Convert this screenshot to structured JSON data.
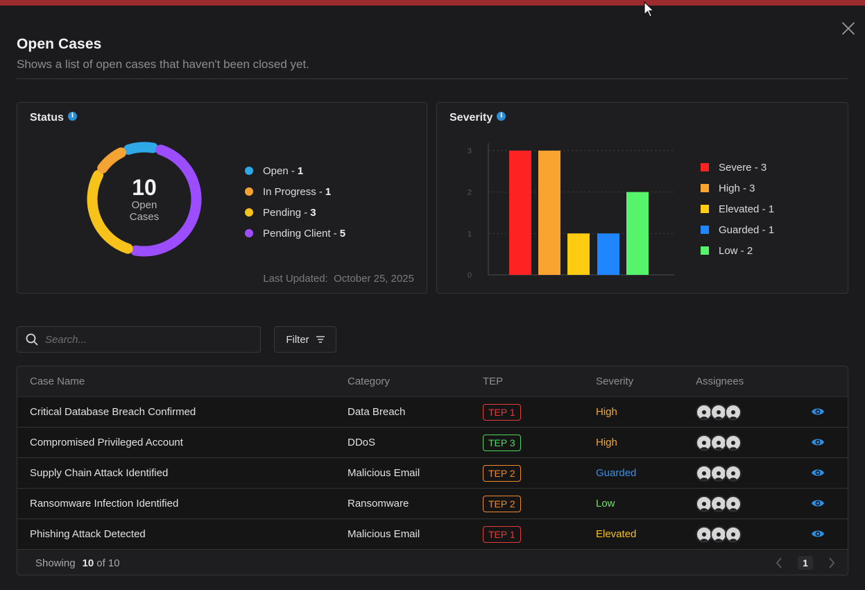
{
  "modal": {
    "title": "Open Cases",
    "subtitle": "Shows a list of open cases that haven't been closed yet."
  },
  "status_card": {
    "title": "Status",
    "total": "10",
    "center_label": "Open Cases",
    "items": [
      {
        "label": "Open - ",
        "count": "1",
        "color": "#2ea8e6"
      },
      {
        "label": "In Progress - ",
        "count": "1",
        "color": "#f5a434"
      },
      {
        "label": "Pending - ",
        "count": "3",
        "color": "#f7c31a"
      },
      {
        "label": "Pending Client - ",
        "count": "5",
        "color": "#9b4dff"
      }
    ],
    "last_updated_label": "Last Updated:",
    "last_updated_value": "October 25, 2025"
  },
  "severity_card": {
    "title": "Severity",
    "legend": [
      {
        "label": "Severe - 3",
        "color": "#ff2222"
      },
      {
        "label": "High - 3",
        "color": "#f9a431"
      },
      {
        "label": "Elevated - 1",
        "color": "#ffcc11"
      },
      {
        "label": "Guarded - 1",
        "color": "#1f86ff"
      },
      {
        "label": "Low - 2",
        "color": "#55f46b"
      }
    ]
  },
  "chart_data": {
    "type": "bar",
    "categories": [
      "Severe",
      "High",
      "Elevated",
      "Guarded",
      "Low"
    ],
    "values": [
      3,
      3,
      1,
      1,
      2
    ],
    "colors": [
      "#ff2222",
      "#f9a431",
      "#ffcc11",
      "#1f86ff",
      "#55f46b"
    ],
    "yticks": [
      "0",
      "1",
      "2",
      "3"
    ],
    "ylim": [
      0,
      3
    ],
    "grid": true
  },
  "toolbar": {
    "search_placeholder": "Search...",
    "filter_label": "Filter"
  },
  "table": {
    "headers": [
      "Case Name",
      "Category",
      "TEP",
      "Severity",
      "Assignees"
    ],
    "rows": [
      {
        "name": "Critical Database Breach Confirmed",
        "category": "Data Breach",
        "tep": "TEP 1",
        "tep_color": "#e53a3a",
        "severity": "High",
        "severity_color": "#f5a434"
      },
      {
        "name": "Compromised Privileged Account",
        "category": "DDoS",
        "tep": "TEP 3",
        "tep_color": "#4fd65d",
        "severity": "High",
        "severity_color": "#f5a434"
      },
      {
        "name": "Supply Chain Attack Identified",
        "category": "Malicious Email",
        "tep": "TEP 2",
        "tep_color": "#f08a2a",
        "severity": "Guarded",
        "severity_color": "#3b8fe8"
      },
      {
        "name": "Ransomware Infection Identified",
        "category": "Ransomware",
        "tep": "TEP 2",
        "tep_color": "#f08a2a",
        "severity": "Low",
        "severity_color": "#6fe06a"
      },
      {
        "name": "Phishing Attack Detected",
        "category": "Malicious Email",
        "tep": "TEP 1",
        "tep_color": "#e53a3a",
        "severity": "Elevated",
        "severity_color": "#f7c31a"
      }
    ],
    "footer": {
      "showing_label": "Showing",
      "showing_count": "10",
      "showing_total": "of 10",
      "page": "1"
    }
  },
  "icons": {
    "close": "close-icon",
    "info": "info-icon",
    "search": "search-icon",
    "filter": "filter-icon",
    "view": "eye-icon",
    "avatar": "user-icon",
    "prev": "chevron-left-icon",
    "next": "chevron-right-icon"
  }
}
